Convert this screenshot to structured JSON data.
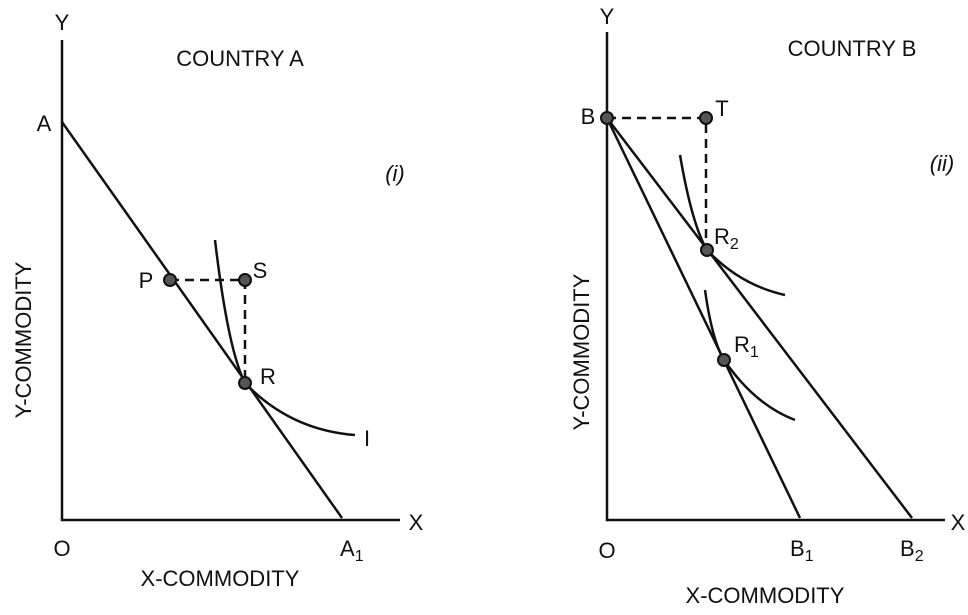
{
  "panel_a": {
    "title": "COUNTRY A",
    "tag": "(i)",
    "y_axis": "Y",
    "x_axis": "X",
    "origin": "O",
    "y_label": "Y-COMMODITY",
    "x_label": "X-COMMODITY",
    "points": {
      "A": "A",
      "P": "P",
      "S": "S",
      "R": "R",
      "A1": {
        "text": "A",
        "sub": "1"
      }
    },
    "curve": "I"
  },
  "panel_b": {
    "title": "COUNTRY B",
    "tag": "(ii)",
    "y_axis": "Y",
    "x_axis": "X",
    "origin": "O",
    "y_label": "Y-COMMODITY",
    "x_label": "X-COMMODITY",
    "points": {
      "B": "B",
      "T": "T",
      "R2": {
        "text": "R",
        "sub": "2"
      },
      "R1": {
        "text": "R",
        "sub": "1"
      },
      "B1": {
        "text": "B",
        "sub": "1"
      },
      "B2": {
        "text": "B",
        "sub": "2"
      }
    }
  }
}
